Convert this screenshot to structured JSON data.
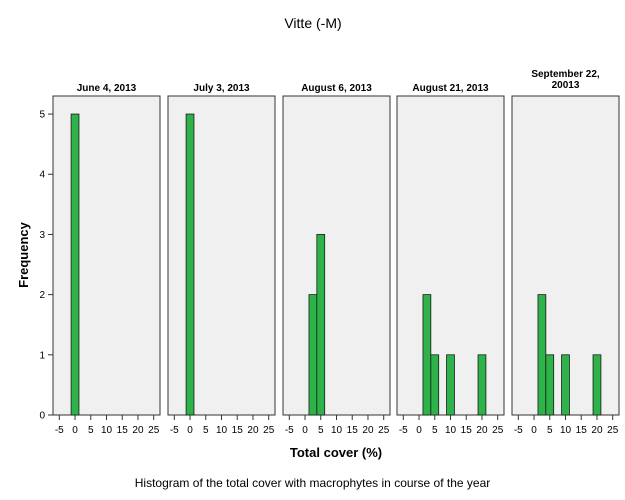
{
  "chart_data": {
    "type": "bar",
    "title": "Vitte (-M)",
    "xlabel": "Total cover (%)",
    "ylabel": "Frequency",
    "xlim": [
      -7,
      27
    ],
    "ylim": [
      0,
      5.3
    ],
    "x_ticks": [
      -5,
      0,
      5,
      10,
      15,
      20,
      25
    ],
    "y_ticks": [
      0,
      1,
      2,
      3,
      4,
      5
    ],
    "bin_width": 2.5,
    "bar_color": "#2eb34a",
    "panel_bg": "#f0f0f0",
    "grid": false,
    "panels": [
      {
        "title": [
          "June 4, 2013"
        ],
        "bars": [
          {
            "x": 0,
            "value": 5
          }
        ]
      },
      {
        "title": [
          "July 3, 2013"
        ],
        "bars": [
          {
            "x": 0,
            "value": 5
          }
        ]
      },
      {
        "title": [
          "August 6, 2013"
        ],
        "bars": [
          {
            "x": 2.5,
            "value": 2
          },
          {
            "x": 5,
            "value": 3
          }
        ]
      },
      {
        "title": [
          "August 21, 2013"
        ],
        "bars": [
          {
            "x": 2.5,
            "value": 2
          },
          {
            "x": 5,
            "value": 1
          },
          {
            "x": 10,
            "value": 1
          },
          {
            "x": 20,
            "value": 1
          }
        ]
      },
      {
        "title": [
          "September 22,",
          "20013"
        ],
        "bars": [
          {
            "x": 2.5,
            "value": 2
          },
          {
            "x": 5,
            "value": 1
          },
          {
            "x": 10,
            "value": 1
          },
          {
            "x": 20,
            "value": 1
          }
        ]
      }
    ]
  },
  "caption": "Histogram of the total cover with macrophytes in course of the year"
}
